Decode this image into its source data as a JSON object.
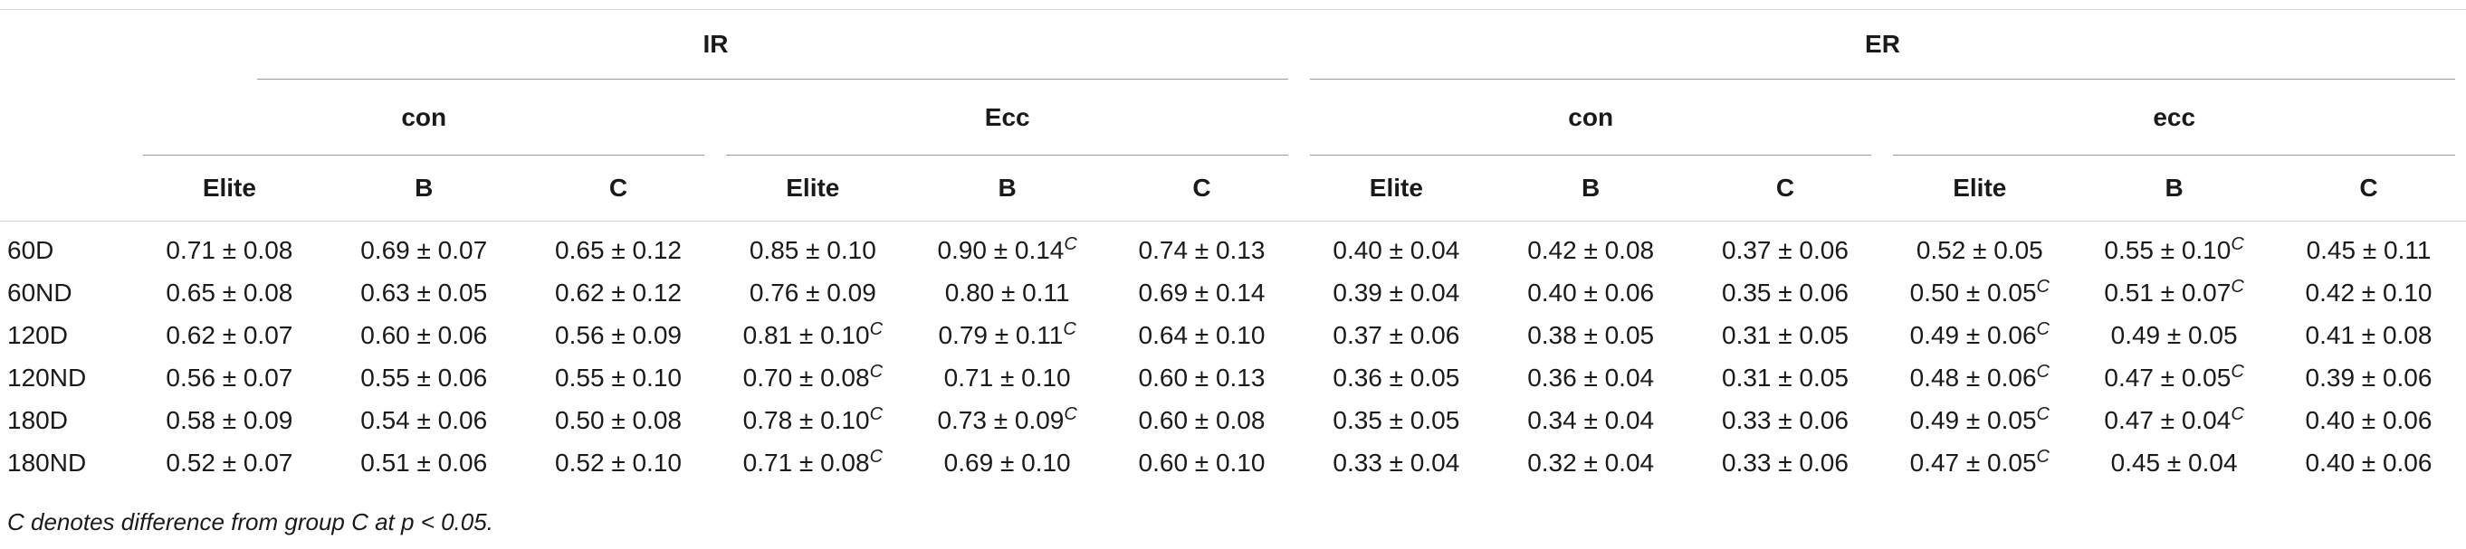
{
  "header": {
    "groups": [
      {
        "label": "IR"
      },
      {
        "label": "ER"
      }
    ],
    "modes": [
      {
        "label": "con"
      },
      {
        "label": "Ecc"
      },
      {
        "label": "con"
      },
      {
        "label": "ecc"
      }
    ],
    "levels": [
      {
        "label": "Elite"
      },
      {
        "label": "B"
      },
      {
        "label": "C"
      },
      {
        "label": "Elite"
      },
      {
        "label": "B"
      },
      {
        "label": "C"
      },
      {
        "label": "Elite"
      },
      {
        "label": "B"
      },
      {
        "label": "C"
      },
      {
        "label": "Elite"
      },
      {
        "label": "B"
      },
      {
        "label": "C"
      }
    ]
  },
  "rows": [
    {
      "label": "60D",
      "cells": [
        {
          "value": "0.71 ± 0.08",
          "sup": ""
        },
        {
          "value": "0.69 ± 0.07",
          "sup": ""
        },
        {
          "value": "0.65 ± 0.12",
          "sup": ""
        },
        {
          "value": "0.85 ± 0.10",
          "sup": ""
        },
        {
          "value": "0.90 ± 0.14",
          "sup": "C"
        },
        {
          "value": "0.74 ± 0.13",
          "sup": ""
        },
        {
          "value": "0.40 ± 0.04",
          "sup": ""
        },
        {
          "value": "0.42 ± 0.08",
          "sup": ""
        },
        {
          "value": "0.37 ± 0.06",
          "sup": ""
        },
        {
          "value": "0.52 ± 0.05",
          "sup": ""
        },
        {
          "value": "0.55 ± 0.10",
          "sup": "C"
        },
        {
          "value": "0.45 ± 0.11",
          "sup": ""
        }
      ]
    },
    {
      "label": "60ND",
      "cells": [
        {
          "value": "0.65 ± 0.08",
          "sup": ""
        },
        {
          "value": "0.63 ± 0.05",
          "sup": ""
        },
        {
          "value": "0.62 ± 0.12",
          "sup": ""
        },
        {
          "value": "0.76 ± 0.09",
          "sup": ""
        },
        {
          "value": "0.80 ± 0.11",
          "sup": ""
        },
        {
          "value": "0.69 ± 0.14",
          "sup": ""
        },
        {
          "value": "0.39 ± 0.04",
          "sup": ""
        },
        {
          "value": "0.40 ± 0.06",
          "sup": ""
        },
        {
          "value": "0.35 ± 0.06",
          "sup": ""
        },
        {
          "value": "0.50 ± 0.05",
          "sup": "C"
        },
        {
          "value": "0.51 ± 0.07",
          "sup": "C"
        },
        {
          "value": "0.42 ± 0.10",
          "sup": ""
        }
      ]
    },
    {
      "label": "120D",
      "cells": [
        {
          "value": "0.62 ± 0.07",
          "sup": ""
        },
        {
          "value": "0.60 ± 0.06",
          "sup": ""
        },
        {
          "value": "0.56 ± 0.09",
          "sup": ""
        },
        {
          "value": "0.81 ± 0.10",
          "sup": "C"
        },
        {
          "value": "0.79 ± 0.11",
          "sup": "C"
        },
        {
          "value": "0.64 ± 0.10",
          "sup": ""
        },
        {
          "value": "0.37 ± 0.06",
          "sup": ""
        },
        {
          "value": "0.38 ± 0.05",
          "sup": ""
        },
        {
          "value": "0.31 ± 0.05",
          "sup": ""
        },
        {
          "value": "0.49 ± 0.06",
          "sup": "C"
        },
        {
          "value": "0.49 ± 0.05",
          "sup": ""
        },
        {
          "value": "0.41 ± 0.08",
          "sup": ""
        }
      ]
    },
    {
      "label": "120ND",
      "cells": [
        {
          "value": "0.56 ± 0.07",
          "sup": ""
        },
        {
          "value": "0.55 ± 0.06",
          "sup": ""
        },
        {
          "value": "0.55 ± 0.10",
          "sup": ""
        },
        {
          "value": "0.70 ± 0.08",
          "sup": "C"
        },
        {
          "value": "0.71 ± 0.10",
          "sup": ""
        },
        {
          "value": "0.60 ± 0.13",
          "sup": ""
        },
        {
          "value": "0.36 ± 0.05",
          "sup": ""
        },
        {
          "value": "0.36 ± 0.04",
          "sup": ""
        },
        {
          "value": "0.31 ± 0.05",
          "sup": ""
        },
        {
          "value": "0.48 ± 0.06",
          "sup": "C"
        },
        {
          "value": "0.47 ± 0.05",
          "sup": "C"
        },
        {
          "value": "0.39 ± 0.06",
          "sup": ""
        }
      ]
    },
    {
      "label": "180D",
      "cells": [
        {
          "value": "0.58 ± 0.09",
          "sup": ""
        },
        {
          "value": "0.54 ± 0.06",
          "sup": ""
        },
        {
          "value": "0.50 ± 0.08",
          "sup": ""
        },
        {
          "value": "0.78 ± 0.10",
          "sup": "C"
        },
        {
          "value": "0.73 ± 0.09",
          "sup": "C"
        },
        {
          "value": "0.60 ± 0.08",
          "sup": ""
        },
        {
          "value": "0.35 ± 0.05",
          "sup": ""
        },
        {
          "value": "0.34 ± 0.04",
          "sup": ""
        },
        {
          "value": "0.33 ± 0.06",
          "sup": ""
        },
        {
          "value": "0.49 ± 0.05",
          "sup": "C"
        },
        {
          "value": "0.47 ± 0.04",
          "sup": "C"
        },
        {
          "value": "0.40 ± 0.06",
          "sup": ""
        }
      ]
    },
    {
      "label": "180ND",
      "cells": [
        {
          "value": "0.52 ± 0.07",
          "sup": ""
        },
        {
          "value": "0.51 ± 0.06",
          "sup": ""
        },
        {
          "value": "0.52 ± 0.10",
          "sup": ""
        },
        {
          "value": "0.71 ± 0.08",
          "sup": "C"
        },
        {
          "value": "0.69 ± 0.10",
          "sup": ""
        },
        {
          "value": "0.60 ± 0.10",
          "sup": ""
        },
        {
          "value": "0.33 ± 0.04",
          "sup": ""
        },
        {
          "value": "0.32 ± 0.04",
          "sup": ""
        },
        {
          "value": "0.33 ± 0.06",
          "sup": ""
        },
        {
          "value": "0.47 ± 0.05",
          "sup": "C"
        },
        {
          "value": "0.45 ± 0.04",
          "sup": ""
        },
        {
          "value": "0.40 ± 0.06",
          "sup": ""
        }
      ]
    }
  ],
  "footnote": "C denotes difference from group C at p < 0.05."
}
